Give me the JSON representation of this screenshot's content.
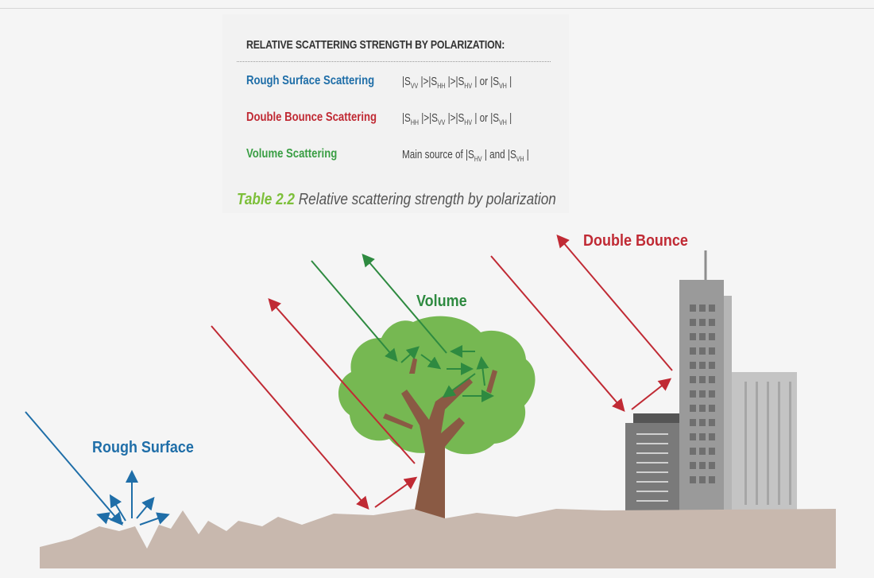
{
  "table": {
    "title": "RELATIVE SCATTERING STRENGTH BY POLARIZATION:",
    "rows": [
      {
        "label": "Rough Surface Scattering",
        "value": "|SVV |>|SHH |>|SHV | or |SVH |",
        "terms": [
          "VV",
          "HH",
          "HV",
          "VH"
        ]
      },
      {
        "label": "Double Bounce Scattering",
        "value": "|SHH |>|SVV |>|SHV | or |SVH |",
        "terms": [
          "HH",
          "VV",
          "HV",
          "VH"
        ]
      },
      {
        "label": "Volume Scattering",
        "value": "Main source of |SHV | and |SVH |",
        "prefix": "Main source of ",
        "terms": [
          "HV",
          "VH"
        ],
        "connector": " and "
      }
    ],
    "caption_number": "Table 2.2",
    "caption_text": " Relative scattering strength by polarization"
  },
  "diagram": {
    "labels": {
      "rough_surface": "Rough Surface",
      "volume": "Volume",
      "double_bounce": "Double Bounce"
    }
  },
  "colors": {
    "rough": "#1f6ea8",
    "double": "#c02a34",
    "volume": "#3a9e44",
    "ground": "#c8b8ae",
    "tree": "#76b852",
    "trunk": "#8a5a44",
    "caption_accent": "#7dbf3a"
  },
  "icons": [
    "rough-surface-arrows",
    "tree",
    "skyscraper",
    "short-building"
  ]
}
